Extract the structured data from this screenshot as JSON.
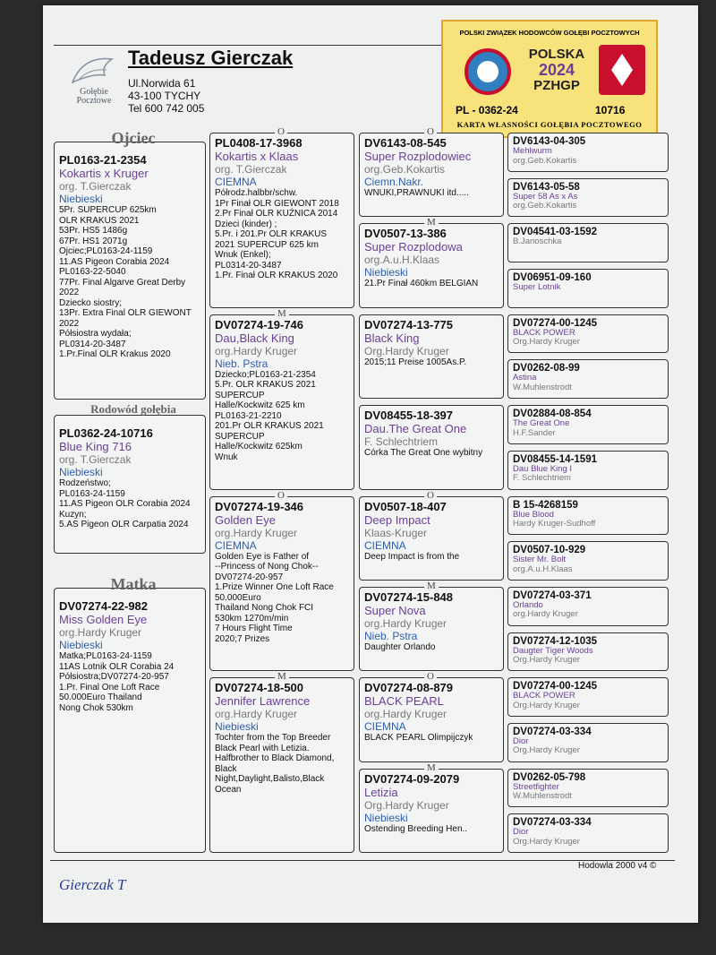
{
  "header": {
    "breeder": "Tadeusz Gierczak",
    "address": [
      "Ul.Norwida 61",
      "43-100 TYCHY",
      "Tel 600 742 005"
    ],
    "logo_text": "Gołębie Pocztowe"
  },
  "badge": {
    "union": "POLSKI ZWIĄZEK HODOWCÓW GOŁĘBI POCZTOWYCH",
    "country": "POLSKA",
    "year": "2024",
    "org": "PZHGP",
    "ring": "PL - 0362-24",
    "number": "10716",
    "card": "KARTA WŁASNOŚCI GOŁĘBIA POCZTOWEGO"
  },
  "pedigree": {
    "columns": [
      [
        {
          "label": "Ojciec",
          "ring": "PL0163-21-2354",
          "name": "Kokartis x Kruger",
          "org": "org. T.Gierczak",
          "color": "Niebieski",
          "notes": [
            "5Pr. SUPERCUP 625km",
            "OLR KRAKUS 2021",
            "53Pr. HS5 1486g",
            "67Pr. HS1 2071g",
            "Ojciec;PL0163-24-1159",
            "11.AS Pigeon Corabia 2024",
            "PL0163-22-5040",
            "77Pr. Final Algarve Great Derby 2022",
            "Dziecko siostry;",
            "13Pr. Extra Final OLR GIEWONT 2022",
            "Półsiostra wydała;",
            "PL0314-20-3487",
            "1.Pr.Final OLR Krakus 2020"
          ]
        },
        {
          "label": "Rodowód gołębia",
          "ring": "PL0362-24-10716",
          "name": "Blue King 716",
          "org": "org. T.Gierczak",
          "color": "Niebieski",
          "notes": [
            "Rodzeństwo;",
            "PL0163-24-1159",
            "11.AS Pigeon OLR Corabia 2024",
            "Kuzyn;",
            "5.AS Pigeon OLR Carpatia 2024"
          ]
        },
        {
          "label": "Matka",
          "ring": "DV07274-22-982",
          "name": "Miss Golden Eye",
          "org": "org.Hardy Kruger",
          "color": "Niebieski",
          "notes": [
            "Matka;PL0163-24-1159",
            "11AS Lotnik OLR Corabia 24",
            "Półsiostra;DV07274-20-957",
            "1.Pr. Final One Loft Race",
            "50.000Euro Thailand",
            "Nong Chok 530km"
          ]
        }
      ],
      [
        {
          "sex": "O",
          "ring": "PL0408-17-3968",
          "name": "Kokartis x Klaas",
          "org": "org. T.Gierczak",
          "color": "CIEMNA",
          "notes": [
            "Półrodz.halbbr/schw.",
            "1Pr Finał OLR GIEWONT 2018",
            "2.Pr Finał OLR KUŹNICA 2014",
            "Dzieci (kinder) ;",
            "5.Pr. i 201.Pr OLR KRAKUS 2021 SUPERCUP 625 km",
            "Wnuk (Enkel);",
            "PL0314-20-3487",
            "1.Pr. Finał OLR KRAKUS 2020"
          ]
        },
        {
          "sex": "M",
          "ring": "DV07274-19-746",
          "name": "Dau,Black King",
          "org": "org.Hardy Kruger",
          "color": "Nieb. Pstra",
          "notes": [
            "Dziecko;PL0163-21-2354",
            "5.Pr. OLR KRAKUS 2021 SUPERCUP",
            "Halle/Kockwitz 625 km",
            "PL0163-21-2210",
            "201.Pr OLR KRAKUS 2021 SUPERCUP",
            "Halle/Kockwitz 625km",
            "Wnuk"
          ]
        },
        {
          "sex": "O",
          "ring": "DV07274-19-346",
          "name": "Golden Eye",
          "org": "org.Hardy Kruger",
          "color": "CIEMNA",
          "notes": [
            "Golden Eye is Father of",
            "--Princess of Nong Chok--",
            "DV07274-20-957",
            "1.Prize Winner One Loft Race",
            "50.000Euro",
            "Thailand Nong Chok FCI",
            "530km 1270m/min",
            "7 Hours Flight Time",
            "2020;7 Prizes"
          ]
        },
        {
          "sex": "M",
          "ring": "DV07274-18-500",
          "name": "Jennifer Lawrence",
          "org": "org.Hardy Kruger",
          "color": "Niebieski",
          "notes": [
            "Tochter from the Top Breeder Black Pearl with Letizia.",
            "Halfbrother to Black Diamond, Black",
            "Night,Daylight,Balisto,Black Ocean"
          ]
        }
      ],
      [
        {
          "sex": "O",
          "ring": "DV6143-08-545",
          "name": "Super Rozplodowiec",
          "org": "org.Geb.Kokartis",
          "color": "Ciemn.Nakr.",
          "notes": [
            "WNUKI,PRAWNUKI itd....."
          ]
        },
        {
          "sex": "M",
          "ring": "DV0507-13-386",
          "name": "Super Rozplodowa",
          "org": "org.A.u.H.Klaas",
          "color": "Niebieski",
          "notes": [
            "21.Pr Finał 460km BELGIAN"
          ]
        },
        {
          "ring": "DV07274-13-775",
          "name": "Black King",
          "org": "Org.Hardy Kruger",
          "notes": [
            "2015;11 Preise 1005As.P."
          ]
        },
        {
          "ring": "DV08455-18-397",
          "name": "Dau.The Great One",
          "org": "F. Schlechtriem",
          "notes": [
            "Córka The Great One  wybitny"
          ]
        },
        {
          "sex": "O",
          "ring": "DV0507-18-407",
          "name": "Deep Impact",
          "org": "Klaas-Kruger",
          "color": "CIEMNA",
          "notes": [
            "Deep Impact is from the"
          ]
        },
        {
          "sex": "M",
          "ring": "DV07274-15-848",
          "name": "Super Nova",
          "org": "org.Hardy Kruger",
          "color": "Nieb. Pstra",
          "notes": [
            "Daughter Orlando"
          ]
        },
        {
          "sex": "O",
          "ring": "DV07274-08-879",
          "name": "BLACK PEARL",
          "org": "org.Hardy Kruger",
          "color": "CIEMNA",
          "notes": [
            "BLACK PEARL Olimpijczyk"
          ]
        },
        {
          "sex": "M",
          "ring": "DV07274-09-2079",
          "name": "Letizia",
          "org": "Org.Hardy Kruger",
          "color": "Niebieski",
          "notes": [
            "Ostending Breeding Hen.."
          ]
        }
      ],
      [
        {
          "ring": "DV6143-04-305",
          "name": "Mehlwurm",
          "org": "org.Geb.Kokartis"
        },
        {
          "ring": "DV6143-05-58",
          "name": "Super 58 As x As",
          "org": "org.Geb.Kokartis"
        },
        {
          "ring": "DV04541-03-1592",
          "org": "B.Janoschka"
        },
        {
          "ring": "DV06951-09-160",
          "name": "Super Lotnik"
        },
        {
          "ring": "DV07274-00-1245",
          "name": "BLACK POWER",
          "org": "Org.Hardy Kruger"
        },
        {
          "ring": "DV0262-08-99",
          "name": "Astina",
          "org": "W.Muhlenstrodt"
        },
        {
          "ring": "DV02884-08-854",
          "name": "The Great One",
          "org": "H.F.Sander"
        },
        {
          "ring": "DV08455-14-1591",
          "name": "Dau Blue King I",
          "org": "F. Schlechtriem"
        },
        {
          "ring": "B 15-4268159",
          "name": "Blue Blood",
          "org": "Hardy Kruger-Sudhoff"
        },
        {
          "ring": "DV0507-10-929",
          "name": "Sister Mr. Bolt",
          "org": "org.A.u.H.Klaas"
        },
        {
          "ring": "DV07274-03-371",
          "name": "Orlando",
          "org": "org.Hardy Kruger"
        },
        {
          "ring": "DV07274-12-1035",
          "name": "Daugter Tiger Woods",
          "org": "Org.Hardy Kruger"
        },
        {
          "ring": "DV07274-00-1245",
          "name": "BLACK POWER",
          "org": "Org.Hardy Kruger"
        },
        {
          "ring": "DV07274-03-334",
          "name": "Dior",
          "org": "Org.Hardy Kruger"
        },
        {
          "ring": "DV0262-05-798",
          "name": "Streetfighter",
          "org": "W.Muhlenstrodt"
        },
        {
          "ring": "DV07274-03-334",
          "name": "Dior",
          "org": "Org.Hardy Kruger"
        }
      ]
    ]
  },
  "footer": {
    "software": "Hodowla 2000 v4 ©",
    "signature": "Gierczak T"
  }
}
